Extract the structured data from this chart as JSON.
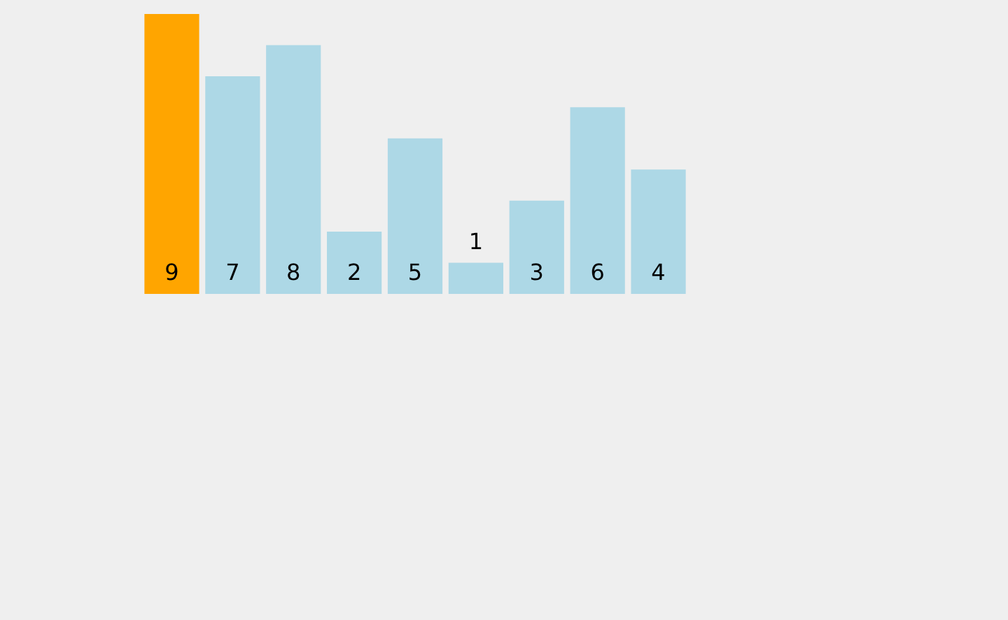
{
  "chart_data": {
    "type": "bar",
    "categories": [
      null,
      null,
      null,
      null,
      null,
      null,
      null,
      null,
      null
    ],
    "values": [
      9,
      7,
      8,
      2,
      5,
      1,
      3,
      6,
      4
    ],
    "colors": [
      "#ffa500",
      "#add8e6",
      "#add8e6",
      "#add8e6",
      "#add8e6",
      "#add8e6",
      "#add8e6",
      "#add8e6",
      "#add8e6"
    ],
    "data_labels": true
  }
}
